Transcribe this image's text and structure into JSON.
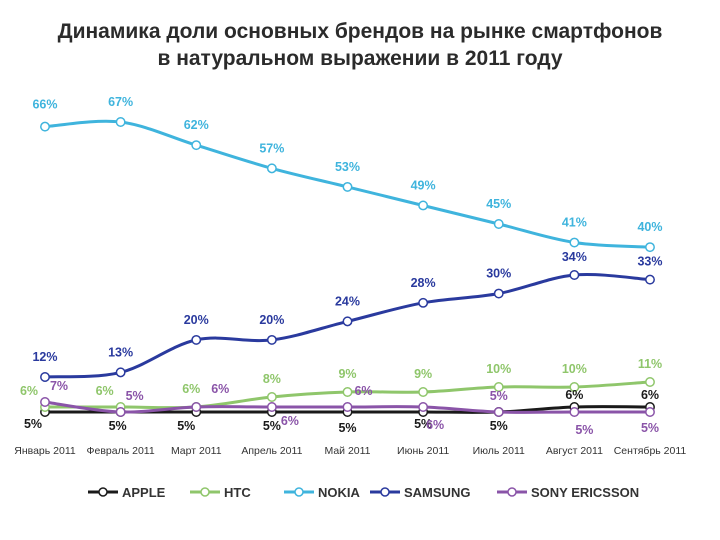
{
  "chart_data": {
    "type": "line",
    "title": "Динамика доли основных брендов на рынке смартфонов",
    "subtitle": "в натуральном выражении в 2011 году",
    "xlabel": "",
    "ylabel": "",
    "ylim": [
      0,
      70
    ],
    "grid": false,
    "legend_position": "bottom",
    "categories": [
      "Январь 2011",
      "Февраль 2011",
      "Март 2011",
      "Апрель 2011",
      "Май 2011",
      "Июнь 2011",
      "Июль 2011",
      "Август 2011",
      "Сентябрь 2011"
    ],
    "series": [
      {
        "name": "APPLE",
        "color": "#1a1a1a",
        "values": [
          5,
          5,
          5,
          5,
          5,
          5,
          5,
          6,
          6
        ],
        "labels": [
          "5%",
          "5%",
          "5%",
          "5%",
          "5%",
          "5%",
          "5%",
          "6%",
          "6%"
        ]
      },
      {
        "name": "HTC",
        "color": "#8fc66b",
        "values": [
          6,
          6,
          6,
          8,
          9,
          9,
          10,
          10,
          11
        ],
        "labels": [
          "6%",
          "6%",
          "6%",
          "8%",
          "9%",
          "9%",
          "10%",
          "10%",
          "11%"
        ]
      },
      {
        "name": "NOKIA",
        "color": "#3fb4dd",
        "values": [
          66,
          67,
          62,
          57,
          53,
          49,
          45,
          41,
          40
        ],
        "labels": [
          "66%",
          "67%",
          "62%",
          "57%",
          "53%",
          "49%",
          "45%",
          "41%",
          "40%"
        ]
      },
      {
        "name": "SAMSUNG",
        "color": "#2a3a9e",
        "values": [
          12,
          13,
          20,
          20,
          24,
          28,
          30,
          34,
          33
        ],
        "labels": [
          "12%",
          "13%",
          "20%",
          "20%",
          "24%",
          "28%",
          "30%",
          "34%",
          "33%"
        ]
      },
      {
        "name": "SONY ERICSSON",
        "color": "#8a54a8",
        "values": [
          7,
          5,
          6,
          6,
          6,
          6,
          5,
          5,
          5
        ],
        "labels": [
          "7%",
          "5%",
          "6%",
          "6%",
          "6%",
          "6%",
          "5%",
          "5%",
          "5%"
        ]
      }
    ]
  }
}
